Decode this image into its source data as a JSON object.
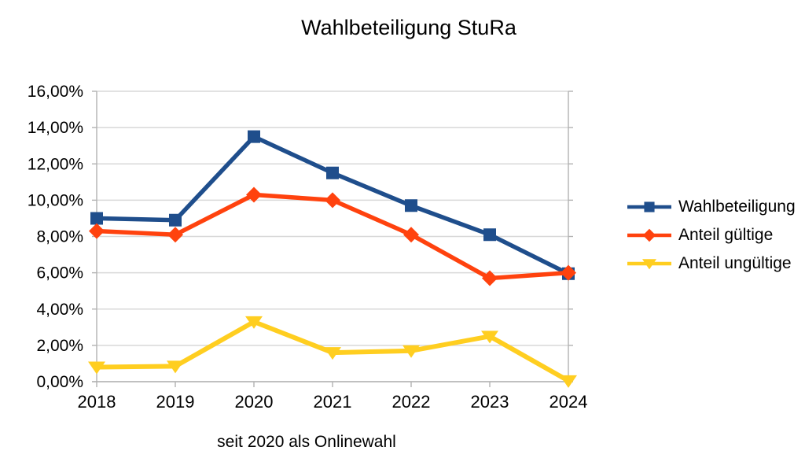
{
  "chart_data": {
    "type": "line",
    "title": "Wahlbeteiligung StuRa",
    "subtitle": "seit 2020 als Onlinewahl",
    "categories": [
      "2018",
      "2019",
      "2020",
      "2021",
      "2022",
      "2023",
      "2024"
    ],
    "series": [
      {
        "name": "Wahlbeteiligung",
        "color": "#1F4E8C",
        "marker": "square",
        "values": [
          9.0,
          8.9,
          13.5,
          11.5,
          9.7,
          8.1,
          5.95
        ]
      },
      {
        "name": "Anteil gültige",
        "color": "#FF420E",
        "marker": "diamond",
        "values": [
          8.3,
          8.1,
          10.3,
          10.0,
          8.1,
          5.7,
          6.0
        ]
      },
      {
        "name": "Anteil ungültige",
        "color": "#FFCE20",
        "marker": "triangle-down",
        "values": [
          0.8,
          0.85,
          3.3,
          1.6,
          1.7,
          2.5,
          0.05
        ]
      }
    ],
    "ylim": [
      0,
      16
    ],
    "ytick_step": 2,
    "ytick_labels": [
      "0,00%",
      "2,00%",
      "4,00%",
      "6,00%",
      "8,00%",
      "10,00%",
      "12,00%",
      "14,00%",
      "16,00%"
    ],
    "grid": "horizontal",
    "legend_position": "right",
    "xlabel": "",
    "ylabel": ""
  }
}
